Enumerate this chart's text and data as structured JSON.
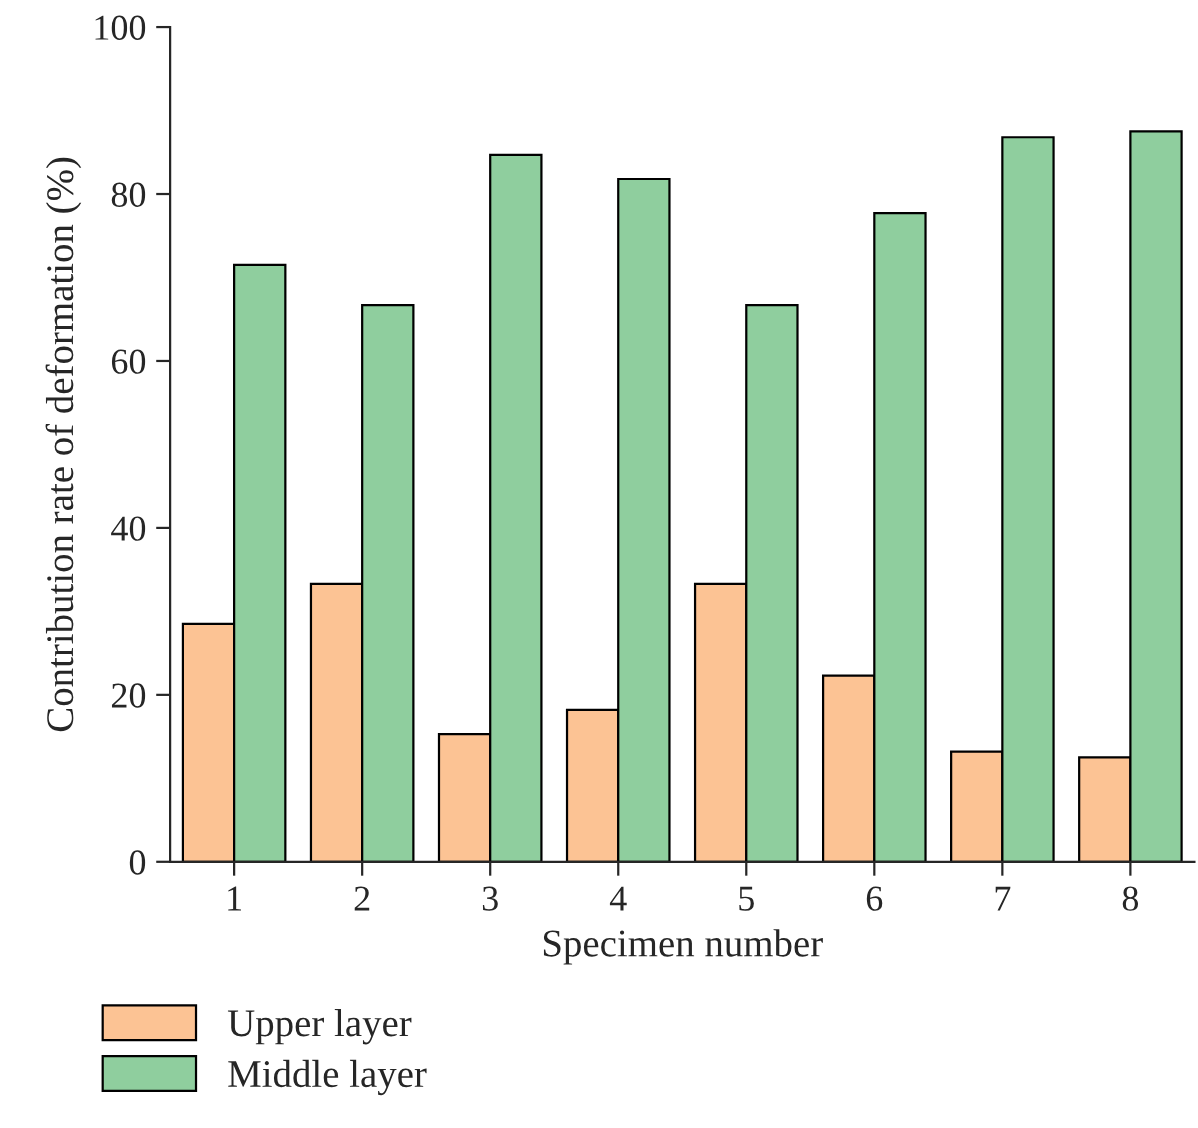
{
  "chart_data": {
    "type": "bar",
    "xlabel": "Specimen number",
    "ylabel": "Contribution rate of deformation (%)",
    "categories": [
      "1",
      "2",
      "3",
      "4",
      "5",
      "6",
      "7",
      "8"
    ],
    "series": [
      {
        "name": "Upper layer",
        "color": "#fcc394",
        "values": [
          28.5,
          33.3,
          15.3,
          18.2,
          33.3,
          22.3,
          13.2,
          12.5
        ]
      },
      {
        "name": "Middle layer",
        "color": "#8fce9e",
        "values": [
          71.5,
          66.7,
          84.7,
          81.8,
          66.7,
          77.7,
          86.8,
          87.5
        ]
      }
    ],
    "ylim": [
      0,
      100
    ],
    "yticks": [
      0,
      20,
      40,
      60,
      80,
      100
    ],
    "legend": "bottom left",
    "grid": false
  }
}
